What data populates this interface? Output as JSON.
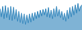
{
  "chart_data": {
    "type": "area",
    "values": [
      82,
      60,
      88,
      55,
      90,
      58,
      85,
      52,
      88,
      50,
      86,
      54,
      80,
      48,
      75,
      45,
      70,
      42,
      68,
      40,
      65,
      44,
      68,
      46,
      70,
      50,
      72,
      55,
      75,
      58,
      78,
      62,
      80,
      65,
      82,
      60,
      85,
      58,
      78,
      55,
      82,
      60,
      88,
      62,
      80,
      58,
      75,
      52,
      70,
      48,
      78,
      55,
      85,
      60,
      88,
      65,
      92,
      70,
      96,
      75,
      88,
      92
    ],
    "color": "#2980b9",
    "ylim": [
      25,
      105
    ],
    "grid": false,
    "tick_labels": false
  }
}
